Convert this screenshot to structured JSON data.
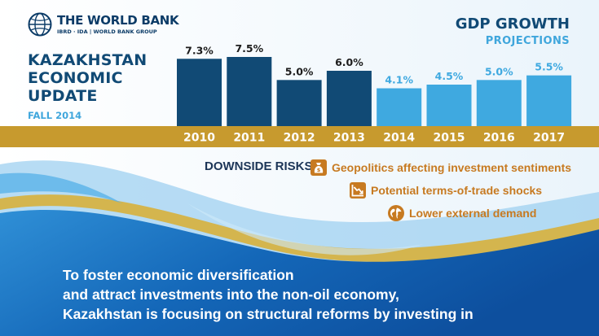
{
  "brand": {
    "name": "THE WORLD BANK",
    "tagline": "IBRD · IDA | WORLD BANK GROUP"
  },
  "report": {
    "title_lines": [
      "KAZAKHSTAN",
      "ECONOMIC",
      "UPDATE"
    ],
    "date": "FALL 2014"
  },
  "chart_data": {
    "type": "bar",
    "title": "GDP GROWTH",
    "subtitle": "PROJECTIONS",
    "categories": [
      "2010",
      "2011",
      "2012",
      "2013",
      "2014",
      "2015",
      "2016",
      "2017"
    ],
    "values": [
      7.3,
      7.5,
      5.0,
      6.0,
      4.1,
      4.5,
      5.0,
      5.5
    ],
    "labels": [
      "7.3%",
      "7.5%",
      "5.0%",
      "6.0%",
      "4.1%",
      "4.5%",
      "5.0%",
      "5.5%"
    ],
    "kind": [
      "actual",
      "actual",
      "actual",
      "actual",
      "projection",
      "projection",
      "projection",
      "projection"
    ],
    "ylim": [
      0,
      7.5
    ],
    "grid": false,
    "legend": "none",
    "colors": {
      "actual": "#114a75",
      "projection": "#3fa9e0",
      "actual_label": "#1d1d1d",
      "projection_label": "#3fa9e0",
      "axis_band": "#c79a2e",
      "tick_label": "#ffffff"
    }
  },
  "risks": {
    "label": "DOWNSIDE RISKS:",
    "items": [
      {
        "text": "Geopolitics affecting investment sentiments",
        "icon": "money-bag-icon"
      },
      {
        "text": "Potential terms-of-trade shocks",
        "icon": "declining-chart-icon"
      },
      {
        "text": "Lower external demand",
        "icon": "globe-icon"
      }
    ],
    "text_color": "#c77a21",
    "label_color": "#1c3557"
  },
  "statement": {
    "lines": [
      "To foster economic diversification",
      "and attract investments into the non-oil economy,",
      "Kazakhstan is focusing on structural reforms by investing in"
    ]
  },
  "theme": {
    "navy": "#114a75",
    "light_blue": "#3fa9e0",
    "gold": "#c79a2e",
    "wave_blue": "#1a76c2"
  }
}
